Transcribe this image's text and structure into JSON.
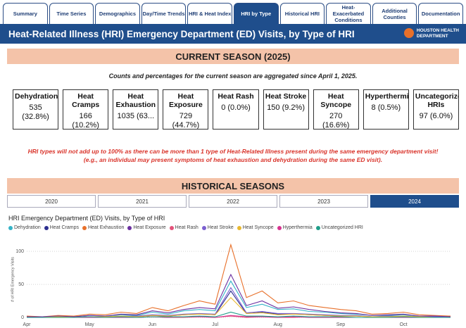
{
  "tabs": [
    "Summary",
    "Time Series",
    "Demographics",
    "Day/Time Trends",
    "HRI & Heat Index",
    "HRI by Type",
    "Historical HRI",
    "Heat-Exacerbated Conditions",
    "Additional Counties",
    "Documentation"
  ],
  "active_tab": "HRI by Type",
  "title": "Heat-Related Illness (HRI) Emergency Department (ED) Visits, by Type of HRI",
  "logo": {
    "line1": "HOUSTON HEALTH",
    "line2": "DEPARTMENT"
  },
  "current_season": {
    "heading": "CURRENT SEASON (2025)",
    "note": "Counts and percentages for the current season are aggregated since April 1, 2025.",
    "cards": [
      {
        "name": "Dehydration",
        "value": "535 (32.8%)"
      },
      {
        "name": "Heat Cramps",
        "value": "166 (10.2%)"
      },
      {
        "name": "Heat Exhaustion",
        "value": "1035 (63..."
      },
      {
        "name": "Heat Exposure",
        "value": "729 (44.7%)"
      },
      {
        "name": "Heat Rash",
        "value": "0 (0.0%)"
      },
      {
        "name": "Heat Stroke",
        "value": "150 (9.2%)"
      },
      {
        "name": "Heat Syncope",
        "value": "270 (16.6%)"
      },
      {
        "name": "Hyperthermia",
        "value": "8 (0.5%)"
      },
      {
        "name": "Uncategorized HRIs",
        "value": "97 (6.0%)"
      }
    ]
  },
  "warning": [
    "HRI types will not add up to 100% as there can be more than 1 type of Heat-Related Illness present during the same emergency department visit!",
    "(e.g., an individual may present symptoms of heat exhaustion and dehydration during the same ED visit)."
  ],
  "historical": {
    "heading": "HISTORICAL SEASONS",
    "years": [
      "2020",
      "2021",
      "2022",
      "2023",
      "2024"
    ],
    "active_year": "2024"
  },
  "chart_data": {
    "type": "line",
    "title": "HRI Emergency Department (ED) Visits, by Type of HRI",
    "y_label": "# of HRI Emergency Visits",
    "categories": [
      "Apr",
      null,
      null,
      null,
      "May",
      null,
      null,
      null,
      "Jun",
      null,
      null,
      null,
      "Jul",
      null,
      null,
      null,
      "Aug",
      null,
      null,
      null,
      "Sep",
      null,
      null,
      null,
      "Oct",
      null,
      null,
      null
    ],
    "ylim": [
      0,
      115
    ],
    "yticks": [
      0,
      50,
      100
    ],
    "grid": true,
    "series": [
      {
        "name": "Dehydration",
        "color": "#34b3c7",
        "values": [
          1,
          0,
          2,
          1,
          3,
          2,
          4,
          3,
          8,
          5,
          10,
          12,
          10,
          55,
          15,
          20,
          12,
          13,
          9,
          8,
          6,
          5,
          3,
          3,
          4,
          2,
          2,
          1
        ]
      },
      {
        "name": "Heat Cramps",
        "color": "#2d2f8f",
        "values": [
          0,
          0,
          1,
          0,
          1,
          1,
          2,
          1,
          3,
          2,
          4,
          5,
          4,
          40,
          6,
          8,
          5,
          5,
          4,
          3,
          2,
          2,
          1,
          1,
          2,
          1,
          1,
          0
        ]
      },
      {
        "name": "Heat Exhaustion",
        "color": "#e8702a",
        "values": [
          2,
          1,
          3,
          2,
          5,
          4,
          8,
          6,
          15,
          10,
          18,
          25,
          20,
          110,
          30,
          40,
          22,
          25,
          18,
          15,
          12,
          10,
          5,
          6,
          8,
          4,
          3,
          2
        ]
      },
      {
        "name": "Heat Exposure",
        "color": "#6b2fa0",
        "values": [
          1,
          1,
          2,
          1,
          3,
          2,
          5,
          4,
          10,
          7,
          12,
          15,
          13,
          65,
          18,
          25,
          14,
          16,
          12,
          9,
          7,
          6,
          3,
          4,
          5,
          2,
          2,
          1
        ]
      },
      {
        "name": "Heat Rash",
        "color": "#e3527a",
        "values": [
          0,
          0,
          0,
          0,
          0,
          0,
          0,
          0,
          1,
          0,
          0,
          1,
          0,
          2,
          0,
          1,
          0,
          0,
          1,
          0,
          0,
          0,
          0,
          0,
          0,
          0,
          0,
          0
        ]
      },
      {
        "name": "Heat Stroke",
        "color": "#7b5fd0",
        "values": [
          0,
          0,
          1,
          0,
          1,
          1,
          2,
          2,
          4,
          3,
          5,
          6,
          5,
          45,
          7,
          9,
          6,
          6,
          5,
          4,
          3,
          3,
          1,
          2,
          2,
          1,
          1,
          0
        ]
      },
      {
        "name": "Heat Syncope",
        "color": "#e8b830",
        "values": [
          0,
          0,
          1,
          0,
          1,
          1,
          2,
          1,
          3,
          2,
          4,
          5,
          4,
          30,
          6,
          7,
          4,
          5,
          4,
          3,
          2,
          2,
          1,
          1,
          2,
          1,
          0,
          0
        ]
      },
      {
        "name": "Hyperthermia",
        "color": "#d6338f",
        "values": [
          0,
          0,
          0,
          0,
          0,
          0,
          0,
          0,
          1,
          0,
          1,
          1,
          0,
          3,
          1,
          1,
          0,
          1,
          0,
          0,
          0,
          0,
          0,
          0,
          0,
          0,
          0,
          0
        ]
      },
      {
        "name": "Uncategorized HRI",
        "color": "#1f9e89",
        "values": [
          0,
          0,
          0,
          0,
          1,
          0,
          1,
          0,
          1,
          1,
          1,
          2,
          1,
          8,
          2,
          2,
          1,
          2,
          1,
          1,
          1,
          0,
          0,
          0,
          1,
          0,
          0,
          0
        ]
      }
    ]
  }
}
